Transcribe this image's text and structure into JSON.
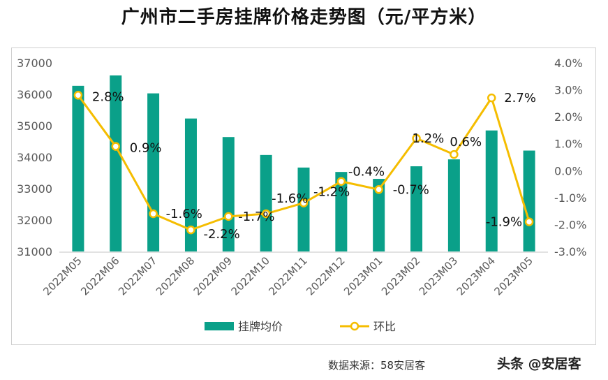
{
  "title": "广州市二手房挂牌价格走势图（元/平方米）",
  "source": "数据来源：58安居客",
  "watermark": "头条 @安居客",
  "chart_data": {
    "type": "bar+line",
    "categories": [
      "2022M05",
      "2022M06",
      "2022M07",
      "2022M08",
      "2022M09",
      "2022M10",
      "2022M11",
      "2022M12",
      "2023M01",
      "2023M02",
      "2023M03",
      "2023M04",
      "2023M05"
    ],
    "series": [
      {
        "name": "挂牌均价",
        "type": "bar",
        "axis": "left",
        "color": "#0aa089",
        "values": [
          36270,
          36600,
          36030,
          35230,
          34640,
          34070,
          33670,
          33530,
          33310,
          33710,
          33930,
          34850,
          34210
        ]
      },
      {
        "name": "环比",
        "type": "line",
        "axis": "right",
        "color": "#f5bd00",
        "values": [
          2.8,
          0.9,
          -1.6,
          -2.2,
          -1.7,
          -1.6,
          -1.2,
          -0.4,
          -0.7,
          1.2,
          0.6,
          2.7,
          -1.9
        ],
        "labels": [
          "2.8%",
          "0.9%",
          "-1.6%",
          "-2.2%",
          "-1.7%",
          "-1.6%",
          "-1.2%",
          "-0.4%",
          "-0.7%",
          "1.2%",
          "0.6%",
          "2.7%",
          "-1.9%"
        ]
      }
    ],
    "left_axis": {
      "ylim": [
        31000,
        37000
      ],
      "ticks": [
        "31000",
        "32000",
        "33000",
        "34000",
        "35000",
        "36000",
        "37000"
      ]
    },
    "right_axis": {
      "ylim": [
        -3.0,
        4.0
      ],
      "ticks": [
        "-3.0%",
        "-2.0%",
        "-1.0%",
        "0.0%",
        "1.0%",
        "2.0%",
        "3.0%",
        "4.0%"
      ]
    },
    "grid": false,
    "legend": "bottom"
  }
}
